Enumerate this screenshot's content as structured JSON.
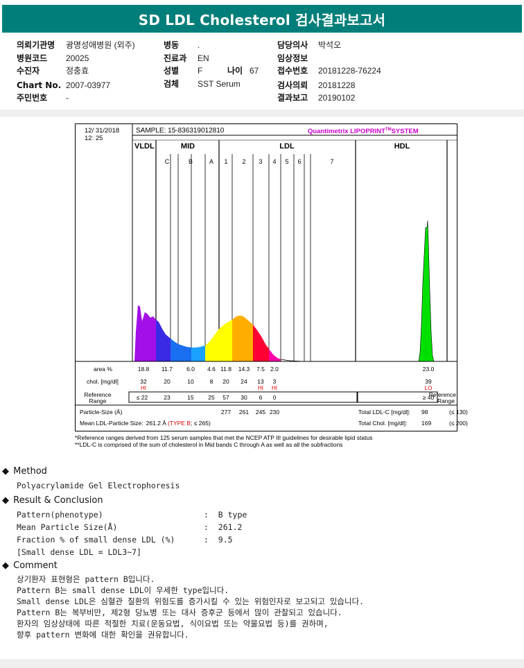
{
  "title": "SD LDL Cholesterol 검사결과보고서",
  "info": {
    "col1": [
      {
        "label": "의뢰기관명",
        "value": "광명성애병원 (외주)"
      },
      {
        "label": "병원코드",
        "value": "20025"
      },
      {
        "label": "수진자",
        "value": "정충효"
      },
      {
        "label": "Chart No.",
        "value": "2007-03977"
      },
      {
        "label": "주민번호",
        "value": "-"
      }
    ],
    "col2": [
      {
        "label": "병동",
        "value": "."
      },
      {
        "label": "진료과",
        "value": "EN"
      },
      {
        "label": "성별",
        "value": "F"
      },
      {
        "label": "검체",
        "value": "SST Serum"
      }
    ],
    "age": {
      "label": "나이",
      "value": "67"
    },
    "col3": [
      {
        "label": "담당의사",
        "value": "박석오"
      },
      {
        "label": "임상정보",
        "value": ""
      },
      {
        "label": "접수번호",
        "value": "20181228-76224"
      },
      {
        "label": "검사의뢰",
        "value": "20181228"
      },
      {
        "label": "결과보고",
        "value": "20190102"
      }
    ]
  },
  "report": {
    "date": "12/ 31/2018",
    "time": "12: 25",
    "sample": "SAMPLE:   15-836319012810",
    "brand": "Quantimetrix LIPOPRINT",
    "brand_sup": "TM",
    "brand_tail": "SYSTEM",
    "regions": [
      "VLDL",
      "MID",
      "LDL",
      "HDL"
    ],
    "bands": [
      "C",
      "B",
      "A",
      "1",
      "2",
      "3",
      "4",
      "5",
      "6",
      "7"
    ],
    "row_labels": {
      "area": "area %",
      "chol": "chol. [mg/dl]",
      "ref": "Reference\nRange",
      "ref_right": "Reference\nRange"
    },
    "area": [
      "18.8",
      "11.7",
      "6.0",
      "4.6",
      "11.8",
      "14.3",
      "7.5",
      "2.0",
      "23.0"
    ],
    "chol": [
      "32",
      "20",
      "10",
      "8",
      "20",
      "24",
      "13",
      "3",
      "39"
    ],
    "flags": [
      {
        "col": "VLDL",
        "text": "HI"
      },
      {
        "col": "3",
        "text": "HI"
      },
      {
        "col": "4",
        "text": "HI"
      },
      {
        "col": "HDL",
        "text": "LO"
      }
    ],
    "ref": [
      "≤ 22",
      "23",
      "15",
      "25",
      "57",
      "30",
      "6",
      "0"
    ],
    "ref_hdl": "≥ 40",
    "particle_size_label": "Particle-Size (Å)",
    "particle_sizes": [
      "277",
      "261",
      "245",
      "230"
    ],
    "mean_label": "Mean LDL-Particle Size:",
    "mean_value": "261.2 Å",
    "mean_type": "(TYPE B",
    "mean_limit": "; ≤ 265)",
    "total_ldl_label": "Total LDL-C [mg/dl]:",
    "total_ldl": "98",
    "total_ldl_limit": "(≤ 130)",
    "total_chol_label": "Total Chol. [mg/dl]:",
    "total_chol": "169",
    "total_chol_limit": "(≤ 200)",
    "notes": [
      "*Reference ranges derived from 125 serum samples that met the NCEP ATP III guidelines for desirable lipid status",
      "**LDL-C is comprised of the sum of cholesterol in Mid bands C through A as well as all the subfractions"
    ],
    "colors": {
      "vldl": "#a20fe8",
      "midC": "#3a2ae6",
      "midB": "#1a6ef0",
      "midA": "#1aa0ff",
      "ldl1": "#ffff00",
      "ldl2": "#ffae00",
      "ldl3": "#ff0033",
      "ldl4": "#ff00aa",
      "hdl": "#00e000",
      "brand": "#cc00cc",
      "flag": "#e00000"
    }
  },
  "method": {
    "heading": "Method",
    "text": "Polyacrylamide Gel Electrophoresis"
  },
  "result": {
    "heading": "Result & Conclusion",
    "lines": [
      "Pattern(phenotype)                     :  B type",
      "Mean Particle Size(Å)                  :  261.2",
      "Fraction % of small dense LDL (%)      :  9.5",
      "[Small dense LDL = LDL3~7]"
    ]
  },
  "comment": {
    "heading": "Comment",
    "lines": [
      "상기환자 표현형은 pattern B입니다.",
      "Pattern B는 small dense LDL이 우세한 type입니다.",
      "Small dense LDL은 심혈관 질환의 위험도를 증가시킬 수 있는 위험인자로 보고되고 있습니다.",
      "Pattern B는 복부비만, 제2형 당뇨병 또는 대사 증후군 등에서 많이 관찰되고 있습니다.",
      "환자의 임상상태에 따른 적절한 치료(운동요법, 식이요법 또는 약물요법 등)를 권하며,",
      "향후 pattern 변화에 대한 확인을 권유합니다."
    ]
  }
}
